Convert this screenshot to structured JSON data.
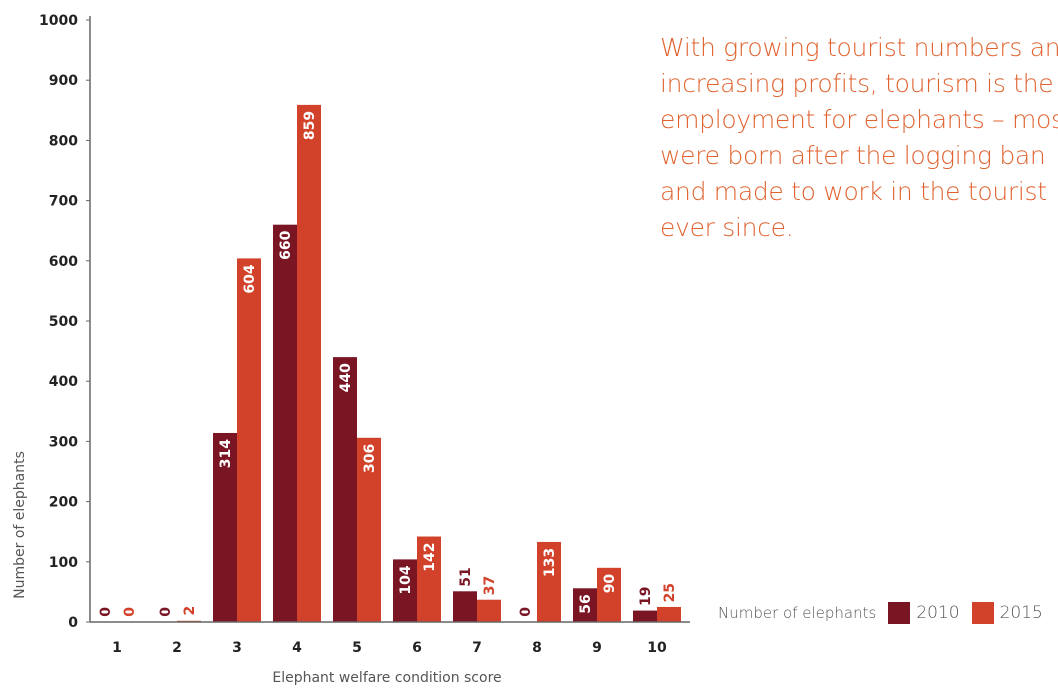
{
  "colors": {
    "series_2010": "#7a1524",
    "series_2015": "#d2412a",
    "axis": "#666666",
    "callout": "#e0622f"
  },
  "callout": {
    "lines": [
      "With growing tourist numbers and",
      "increasing profits, tourism is the main",
      "employment for elephants – most",
      "were born after the logging ban",
      "and made to work in the tourist",
      "ever since."
    ]
  },
  "legend": {
    "title": "Number of elephants",
    "items": [
      "2010",
      "2015"
    ]
  },
  "chart_data": {
    "type": "bar",
    "xlabel": "Elephant welfare condition score",
    "ylabel": "Number of elephants",
    "ylim": [
      0,
      1000
    ],
    "yticks": [
      "0",
      "100",
      "200",
      "300",
      "400",
      "500",
      "600",
      "700",
      "800",
      "900",
      "1000"
    ],
    "categories": [
      "1",
      "2",
      "3",
      "4",
      "5",
      "6",
      "7",
      "8",
      "9",
      "10"
    ],
    "series": [
      {
        "name": "2010",
        "values": [
          0,
          0,
          314,
          660,
          440,
          104,
          51,
          0,
          56,
          19
        ]
      },
      {
        "name": "2015",
        "values": [
          0,
          2,
          604,
          859,
          306,
          142,
          37,
          133,
          90,
          25
        ]
      }
    ],
    "grid": false,
    "legend_position": "bottom-right"
  }
}
